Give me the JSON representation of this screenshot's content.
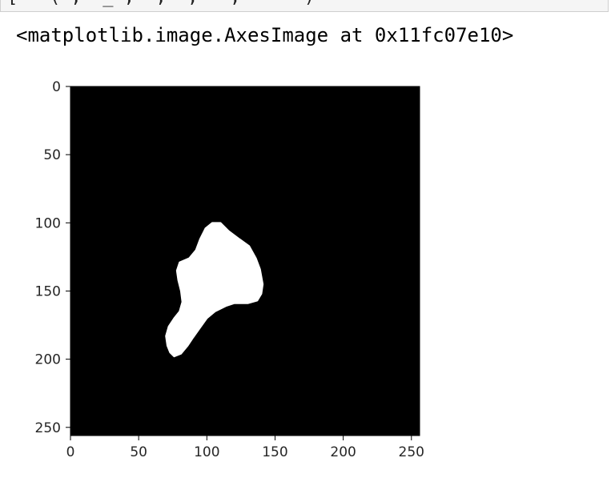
{
  "code_cell": {
    "partial_text_prefix": "[ ",
    "partial_text_middle": "  ( ,  _ ,  ,  ,   ,   ",
    "partial_string": "' '",
    "partial_text_end": ")"
  },
  "output": {
    "repr_text": "<matplotlib.image.AxesImage at 0x11fc07e10>"
  },
  "chart_data": {
    "type": "heatmap",
    "title": "",
    "xlabel": "",
    "ylabel": "",
    "xlim": [
      0,
      256
    ],
    "ylim": [
      256,
      0
    ],
    "x_ticks": [
      "0",
      "50",
      "100",
      "150",
      "200",
      "250"
    ],
    "y_ticks": [
      "0",
      "50",
      "100",
      "150",
      "200",
      "250"
    ],
    "background_color": "#000000",
    "mask_color": "#ffffff",
    "mask_region": {
      "description_points": [
        [
          99,
          104
        ],
        [
          104,
          100
        ],
        [
          110,
          100
        ],
        [
          116,
          106
        ],
        [
          124,
          112
        ],
        [
          131,
          117
        ],
        [
          136,
          126
        ],
        [
          139,
          134
        ],
        [
          141,
          145
        ],
        [
          140,
          152
        ],
        [
          137,
          157
        ],
        [
          130,
          159
        ],
        [
          120,
          159
        ],
        [
          114,
          161
        ],
        [
          106,
          165
        ],
        [
          100,
          170
        ],
        [
          95,
          177
        ],
        [
          90,
          184
        ],
        [
          86,
          190
        ],
        [
          81,
          196
        ],
        [
          76,
          198
        ],
        [
          73,
          195
        ],
        [
          71,
          190
        ],
        [
          70,
          183
        ],
        [
          72,
          176
        ],
        [
          76,
          170
        ],
        [
          80,
          165
        ],
        [
          82,
          158
        ],
        [
          81,
          150
        ],
        [
          79,
          142
        ],
        [
          78,
          135
        ],
        [
          80,
          129
        ],
        [
          87,
          126
        ],
        [
          92,
          120
        ],
        [
          95,
          112
        ]
      ]
    }
  }
}
